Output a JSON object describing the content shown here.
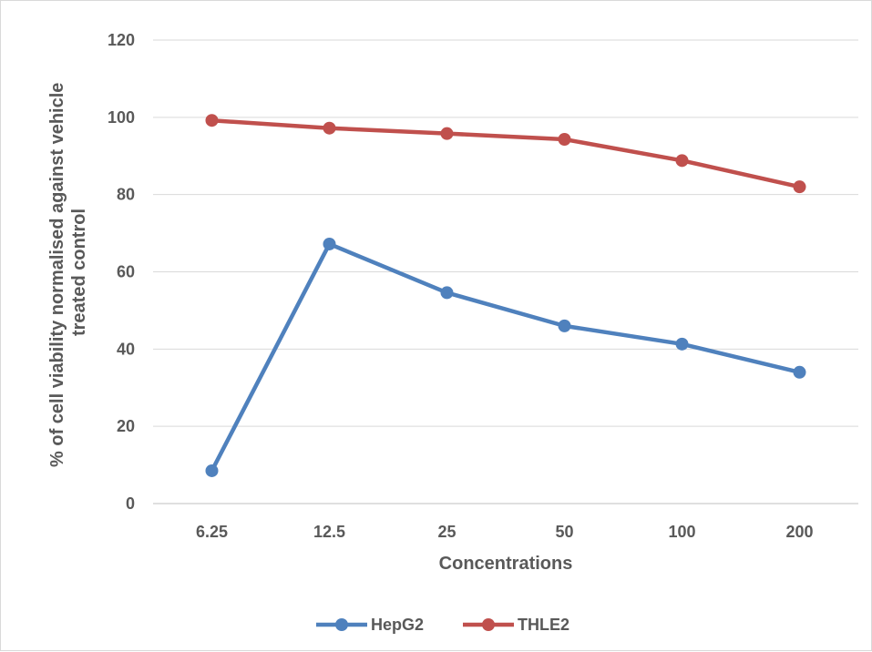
{
  "chart_data": {
    "type": "line",
    "categories": [
      "6.25",
      "12.5",
      "25",
      "50",
      "100",
      "200"
    ],
    "series": [
      {
        "name": "HepG2",
        "color": "#4f81bd",
        "values": [
          8.5,
          67.2,
          54.6,
          46.0,
          41.3,
          34.0
        ]
      },
      {
        "name": "THLE2",
        "color": "#c0504d",
        "values": [
          99.2,
          97.2,
          95.8,
          94.3,
          88.8,
          82.0
        ]
      }
    ],
    "xlabel": "Concentrations",
    "ylabel_lines": [
      "% of cell viability normalised against vehicle",
      "treated control"
    ],
    "ylim": [
      0,
      120
    ],
    "yticks": [
      0,
      20,
      40,
      60,
      80,
      100,
      120
    ],
    "grid": "horizontal",
    "legend_position": "bottom"
  }
}
